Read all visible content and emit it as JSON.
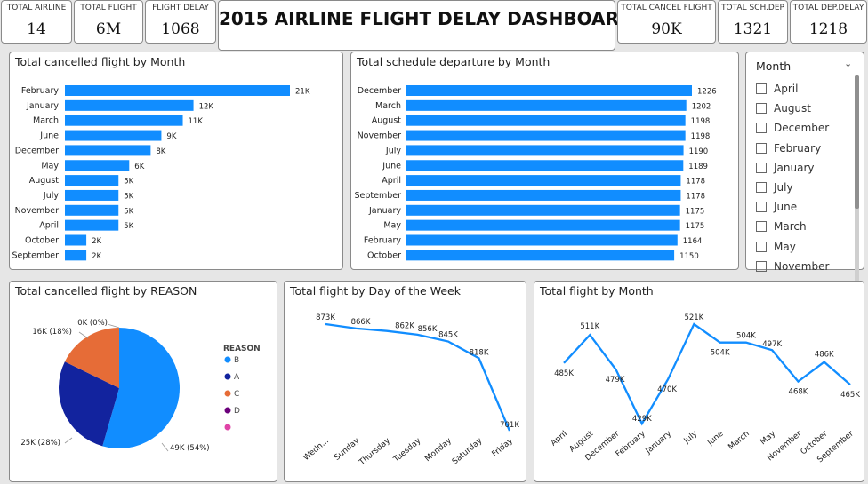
{
  "header": {
    "title": "2015 AIRLINE FLIGHT DELAY DASHBOARD",
    "kpis": [
      {
        "label": "TOTAL AIRLINE",
        "value": "14"
      },
      {
        "label": "TOTAL FLIGHT",
        "value": "6M"
      },
      {
        "label": "FLIGHT DELAY",
        "value": "1068"
      },
      {
        "label": "TOTAL CANCEL FLIGHT",
        "value": "90K"
      },
      {
        "label": "TOTAL SCH.DEP",
        "value": "1321"
      },
      {
        "label": "TOTAL DEP.DELAY",
        "value": "1218"
      }
    ]
  },
  "slicer": {
    "title": "Month",
    "items": [
      "April",
      "August",
      "December",
      "February",
      "January",
      "July",
      "June",
      "March",
      "May",
      "November"
    ]
  },
  "colors": {
    "bar": "#118dff",
    "line": "#118dff",
    "pie_b": "#118dff",
    "pie_a": "#12239e",
    "pie_c": "#e66c37",
    "pie_d": "#6b007b",
    "pie_e": "#e044a7"
  },
  "chart_data": [
    {
      "type": "bar",
      "orientation": "horizontal",
      "title": "Total cancelled flight by Month",
      "categories": [
        "February",
        "January",
        "March",
        "June",
        "December",
        "May",
        "August",
        "July",
        "November",
        "April",
        "October",
        "September"
      ],
      "values": [
        21,
        12,
        11,
        9,
        8,
        6,
        5,
        5,
        5,
        5,
        2,
        2
      ],
      "labels": [
        "21K",
        "12K",
        "11K",
        "9K",
        "8K",
        "6K",
        "5K",
        "5K",
        "5K",
        "5K",
        "2K",
        "2K"
      ],
      "unit": "K",
      "xlim": [
        0,
        21
      ]
    },
    {
      "type": "bar",
      "orientation": "horizontal",
      "title": "Total schedule departure by Month",
      "categories": [
        "December",
        "March",
        "August",
        "November",
        "July",
        "June",
        "April",
        "September",
        "January",
        "May",
        "February",
        "October"
      ],
      "values": [
        1226,
        1202,
        1198,
        1198,
        1190,
        1189,
        1178,
        1178,
        1175,
        1175,
        1164,
        1150
      ],
      "labels": [
        "1226",
        "1202",
        "1198",
        "1198",
        "1190",
        "1189",
        "1178",
        "1178",
        "1175",
        "1175",
        "1164",
        "1150"
      ],
      "xlim": [
        0,
        1226
      ]
    },
    {
      "type": "pie",
      "title": "Total cancelled flight by REASON",
      "legend_title": "REASON",
      "legend_position": "right",
      "categories": [
        "B",
        "A",
        "C",
        "D",
        ""
      ],
      "values": [
        49,
        25,
        16,
        0.001,
        0
      ],
      "labels": [
        "49K (54%)",
        "25K (28%)",
        "16K (18%)",
        "0K (0%)",
        ""
      ]
    },
    {
      "type": "line",
      "title": "Total flight by Day of the Week",
      "categories": [
        "Wedn...",
        "Sunday",
        "Thursday",
        "Tuesday",
        "Monday",
        "Saturday",
        "Friday"
      ],
      "values": [
        873,
        866,
        862,
        856,
        845,
        818,
        701
      ],
      "labels": [
        "873K",
        "866K",
        "862K",
        "856K",
        "845K",
        "818K",
        "701K"
      ],
      "unit": "K"
    },
    {
      "type": "line",
      "title": "Total flight by Month",
      "categories": [
        "April",
        "August",
        "December",
        "February",
        "January",
        "July",
        "June",
        "March",
        "May",
        "November",
        "October",
        "September"
      ],
      "values": [
        485,
        511,
        479,
        429,
        470,
        521,
        504,
        504,
        497,
        468,
        486,
        465
      ],
      "labels": [
        "485K",
        "511K",
        "479K",
        "429K",
        "470K",
        "521K",
        "504K",
        "504K",
        "497K",
        "468K",
        "486K",
        "465K"
      ],
      "unit": "K"
    }
  ]
}
